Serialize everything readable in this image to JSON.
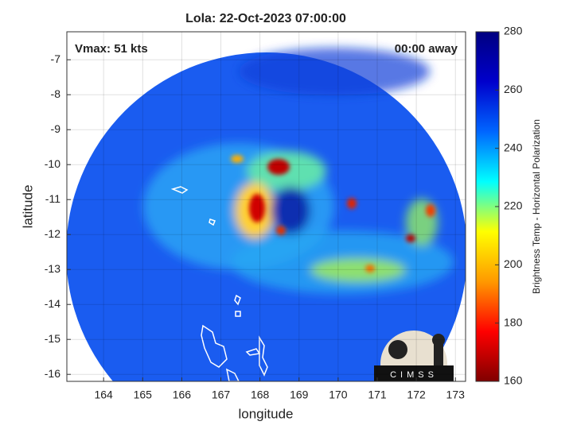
{
  "chart_data": {
    "type": "map",
    "title": "Lola: 22-Oct-2023 07:00:00",
    "annotations": [
      "Vmax: 51 kts",
      "00:00 away"
    ],
    "xlabel": "longitude",
    "ylabel": "latitude",
    "xlim": [
      163.06,
      173.26
    ],
    "xticks": [
      164,
      165,
      166,
      167,
      168,
      169,
      170,
      171,
      172,
      173
    ],
    "ylim": [
      -16.2,
      -6.2
    ],
    "yticks": [
      -16,
      -15,
      -14,
      -13,
      -12,
      -11,
      -10,
      -9,
      -8,
      -7
    ],
    "grid": true,
    "colorbar": {
      "label": "Brightness Temp - Horizontal Polarization",
      "lim": [
        160,
        280
      ],
      "ticks": [
        160,
        180,
        200,
        220,
        240,
        260,
        280
      ],
      "colormap": [
        "#800000",
        "#ff0000",
        "#ff9900",
        "#ffff00",
        "#00ffff",
        "#0066ff",
        "#0000cc",
        "#000080"
      ]
    },
    "logo": "CIMSS"
  }
}
